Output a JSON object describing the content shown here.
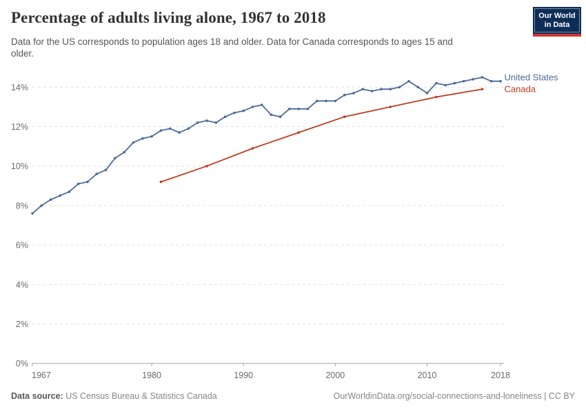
{
  "header": {
    "title": "Percentage of adults living alone, 1967 to 2018",
    "subtitle_lines": [
      "Data for the US corresponds to population ages 18 and older. Data for Canada corresponds to ages 15 and",
      "older."
    ]
  },
  "logo": {
    "line1": "Our World",
    "line2": "in Data",
    "bg_color": "#0D2D56",
    "stripe_color": "#D13834"
  },
  "chart_data": {
    "type": "line",
    "title": "Percentage of adults living alone, 1967 to 2018",
    "xlabel": "",
    "ylabel": "",
    "xlim": [
      1967,
      2018
    ],
    "ylim": [
      0,
      14
    ],
    "grid": "horizontal-dashed",
    "legend_position": "labels-at-line-end",
    "x_ticks": [
      1967,
      1980,
      1990,
      2000,
      2010,
      2018
    ],
    "y_tick_values": [
      0,
      2,
      4,
      6,
      8,
      10,
      12,
      14
    ],
    "y_tick_labels": [
      "0%",
      "2%",
      "4%",
      "6%",
      "8%",
      "10%",
      "12%",
      "14%"
    ],
    "axis_colors": {
      "grid_color": "#e1e1e1",
      "axis_line_color": "#a3a3a3",
      "tick_label_color": "#6b6b6b"
    },
    "series": [
      {
        "name": "United States",
        "color": "#4C6A9C",
        "x": [
          1967,
          1968,
          1969,
          1970,
          1971,
          1972,
          1973,
          1974,
          1975,
          1976,
          1977,
          1978,
          1979,
          1980,
          1981,
          1982,
          1983,
          1984,
          1985,
          1986,
          1987,
          1988,
          1989,
          1990,
          1991,
          1992,
          1993,
          1994,
          1995,
          1996,
          1997,
          1998,
          1999,
          2000,
          2001,
          2002,
          2003,
          2004,
          2005,
          2006,
          2007,
          2008,
          2009,
          2010,
          2011,
          2012,
          2013,
          2014,
          2015,
          2016,
          2017,
          2018
        ],
        "values": [
          7.6,
          8.0,
          8.3,
          8.5,
          8.7,
          9.1,
          9.2,
          9.6,
          9.8,
          10.4,
          10.7,
          11.2,
          11.4,
          11.5,
          11.8,
          11.9,
          11.7,
          11.9,
          12.2,
          12.3,
          12.2,
          12.5,
          12.7,
          12.8,
          13.0,
          13.1,
          12.6,
          12.5,
          12.9,
          12.9,
          12.9,
          13.3,
          13.3,
          13.3,
          13.6,
          13.7,
          13.9,
          13.8,
          13.9,
          13.9,
          14.0,
          14.3,
          14.0,
          13.7,
          14.2,
          14.1,
          14.2,
          14.3,
          14.4,
          14.5,
          14.3,
          14.3
        ]
      },
      {
        "name": "Canada",
        "color": "#BD3D1D",
        "x": [
          1981,
          1986,
          1991,
          1996,
          2001,
          2006,
          2011,
          2016
        ],
        "values": [
          9.2,
          10.0,
          10.9,
          11.7,
          12.5,
          13.0,
          13.5,
          13.9
        ]
      }
    ]
  },
  "footer": {
    "source_label": "Data source:",
    "source_text": " US Census Bureau & Statistics Canada",
    "attribution": "OurWorldinData.org/social-connections-and-loneliness | CC BY"
  }
}
